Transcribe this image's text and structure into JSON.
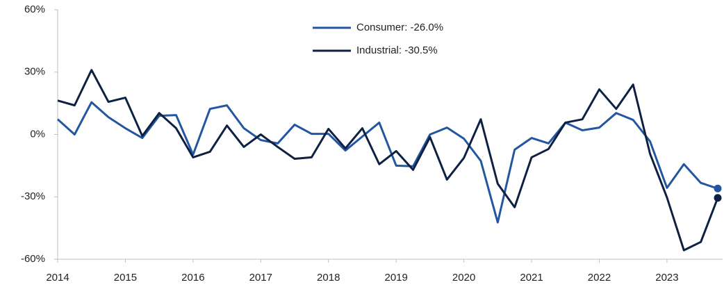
{
  "chart_data": {
    "type": "line",
    "x": [
      2014,
      2014.25,
      2014.5,
      2014.75,
      2015,
      2015.25,
      2015.5,
      2015.75,
      2016,
      2016.25,
      2016.5,
      2016.75,
      2017,
      2017.25,
      2017.5,
      2017.75,
      2018,
      2018.25,
      2018.5,
      2018.75,
      2019,
      2019.25,
      2019.5,
      2019.75,
      2020,
      2020.25,
      2020.5,
      2020.75,
      2021,
      2021.25,
      2021.5,
      2021.75,
      2022,
      2022.25,
      2022.5,
      2022.75,
      2023,
      2023.25,
      2023.5,
      2023.75
    ],
    "series": [
      {
        "name": "Consumer: -26.0%",
        "color": "#2356a0",
        "values": [
          7.3,
          0,
          15.5,
          8.3,
          3,
          -1.7,
          9,
          9.3,
          -9.7,
          12.3,
          14,
          3,
          -2.7,
          -4.3,
          4.7,
          0.3,
          0.3,
          -7.7,
          -1,
          5.7,
          -15,
          -15.3,
          0,
          3.3,
          -2,
          -12.7,
          -42.3,
          -7.3,
          -1.7,
          -4.3,
          5.7,
          2,
          3.3,
          10.3,
          7,
          -3.3,
          -25.7,
          -14.3,
          -23.3,
          -26
        ]
      },
      {
        "name": "Industrial: -30.5%",
        "color": "#0e2143",
        "values": [
          16.3,
          14,
          31,
          15.7,
          17.7,
          -0.7,
          10.3,
          3,
          -11,
          -8.3,
          4.3,
          -6,
          0,
          -6,
          -11.7,
          -11,
          2.7,
          -6.7,
          3,
          -14.3,
          -8,
          -17,
          -1.3,
          -21.7,
          -11.3,
          7.3,
          -23.7,
          -35,
          -11,
          -7,
          5.7,
          7.3,
          21.7,
          12.3,
          24,
          -9.3,
          -30.3,
          -55.7,
          -51.7,
          -30.5
        ]
      }
    ],
    "xlim": [
      2014,
      2023.75
    ],
    "xticks": [
      2014,
      2015,
      2016,
      2017,
      2018,
      2019,
      2020,
      2021,
      2022,
      2023
    ],
    "ylim": [
      -60,
      60
    ],
    "yticks": [
      {
        "value": -60,
        "label": "-60%"
      },
      {
        "value": -30,
        "label": "-30%"
      },
      {
        "value": 0,
        "label": "0%"
      },
      {
        "value": 30,
        "label": "30%"
      },
      {
        "value": 60,
        "label": "60%"
      }
    ],
    "grid": false,
    "legend": "top-center",
    "end_markers": true
  }
}
